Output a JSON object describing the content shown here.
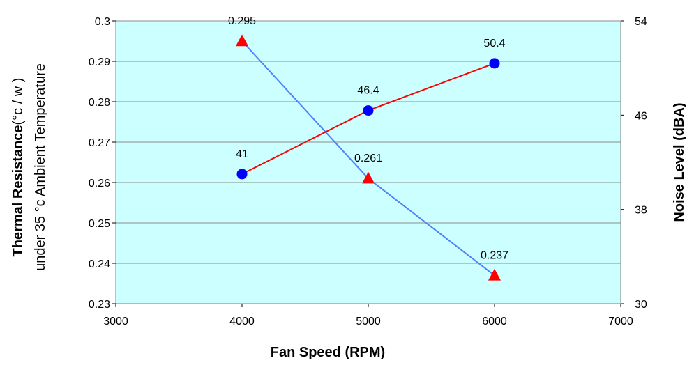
{
  "chart_data": {
    "type": "line",
    "background_color": "#ccffff",
    "grid": true,
    "x": [
      4000,
      5000,
      6000
    ],
    "xlim": [
      3000,
      7000
    ],
    "xticks": [
      3000,
      4000,
      5000,
      6000,
      7000
    ],
    "xlabel": "Fan Speed (RPM)",
    "ylabel_left": {
      "line1_bold": "Thermal Resistance",
      "line1_rest": "(°c / w )",
      "line2": "under 35 °c Ambient Temperature"
    },
    "ylim_left": [
      0.23,
      0.3
    ],
    "yticks_left": [
      "0.23",
      "0.24",
      "0.25",
      "0.26",
      "0.27",
      "0.28",
      "0.29",
      "0.3"
    ],
    "ylabel_right": "Noise Level (dBA)",
    "ylim_right": [
      30,
      54
    ],
    "yticks_right": [
      "30",
      "38",
      "46",
      "54"
    ],
    "series": [
      {
        "axis": "left",
        "marker": "triangle",
        "marker_color": "#ff0000",
        "line_color": "#4f81ff",
        "values": [
          0.295,
          0.261,
          0.237
        ],
        "labels": [
          "0.295",
          "0.261",
          "0.237"
        ]
      },
      {
        "axis": "right",
        "marker": "circle",
        "marker_color": "#0000ff",
        "line_color": "#ff0000",
        "values": [
          41,
          46.4,
          50.4
        ],
        "labels": [
          "41",
          "46.4",
          "50.4"
        ]
      }
    ]
  }
}
